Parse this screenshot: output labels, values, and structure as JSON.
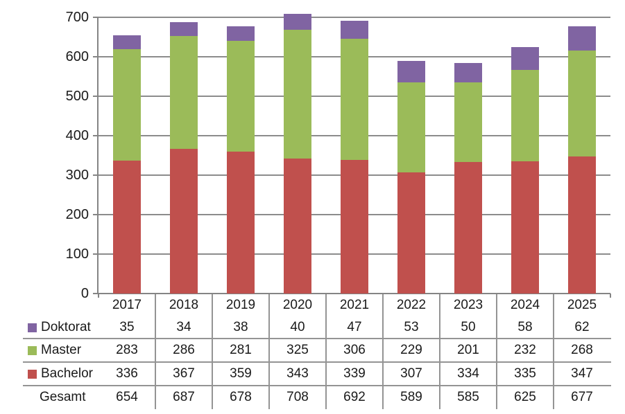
{
  "chart_data": {
    "type": "bar",
    "stacked": true,
    "title": "",
    "categories": [
      "2017",
      "2018",
      "2019",
      "2020",
      "2021",
      "2022",
      "2023",
      "2024",
      "2025"
    ],
    "series": [
      {
        "name": "Bachelor",
        "color": "#C0504D",
        "values": [
          336,
          367,
          359,
          343,
          339,
          307,
          334,
          335,
          347
        ]
      },
      {
        "name": "Master",
        "color": "#9BBB59",
        "values": [
          283,
          286,
          281,
          325,
          306,
          229,
          201,
          232,
          268
        ]
      },
      {
        "name": "Doktorat",
        "color": "#8064A2",
        "values": [
          35,
          34,
          38,
          40,
          47,
          53,
          50,
          58,
          62
        ]
      }
    ],
    "totals_row": {
      "name": "Gesamt",
      "values": [
        654,
        687,
        678,
        708,
        692,
        589,
        585,
        625,
        677
      ]
    },
    "ylim": [
      0,
      700
    ],
    "yticks": [
      0,
      100,
      200,
      300,
      400,
      500,
      600,
      700
    ],
    "grid": true,
    "legend_position": "table-left",
    "colors": {
      "axis": "#848484",
      "gridline": "#8C8C8C",
      "table_line": "#949494",
      "text": "#1A1A1A",
      "background": "#FFFFFF"
    }
  }
}
